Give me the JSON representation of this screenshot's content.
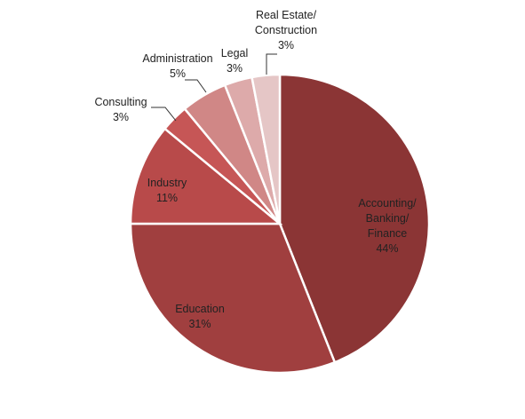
{
  "chart_data": {
    "type": "pie",
    "title": "",
    "slices": [
      {
        "label_lines": [
          "Accounting/",
          "Banking/",
          "Finance"
        ],
        "value": 44,
        "value_label": "44%",
        "color": "#8B3535"
      },
      {
        "label_lines": [
          "Education"
        ],
        "value": 31,
        "value_label": "31%",
        "color": "#A03F3F"
      },
      {
        "label_lines": [
          "Industry"
        ],
        "value": 11,
        "value_label": "11%",
        "color": "#B84A4A"
      },
      {
        "label_lines": [
          "Consulting"
        ],
        "value": 3,
        "value_label": "3%",
        "color": "#C65656"
      },
      {
        "label_lines": [
          "Administration"
        ],
        "value": 5,
        "value_label": "5%",
        "color": "#D08786"
      },
      {
        "label_lines": [
          "Legal"
        ],
        "value": 3,
        "value_label": "3%",
        "color": "#DDAAAA"
      },
      {
        "label_lines": [
          "Real Estate/",
          "Construction"
        ],
        "value": 3,
        "value_label": "3%",
        "color": "#E5C6C6"
      }
    ],
    "legend": "none"
  }
}
